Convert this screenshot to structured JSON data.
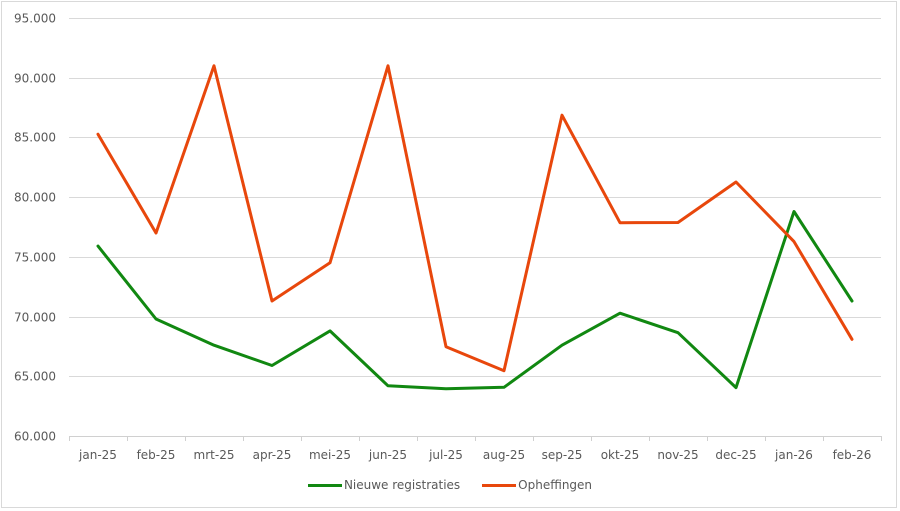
{
  "chart_data": {
    "type": "line",
    "title": "",
    "xlabel": "",
    "ylabel": "",
    "categories": [
      "jan-25",
      "feb-25",
      "mrt-25",
      "apr-25",
      "mei-25",
      "jun-25",
      "jul-25",
      "aug-25",
      "sep-25",
      "okt-25",
      "nov-25",
      "dec-25",
      "jan-26",
      "feb-26"
    ],
    "series": [
      {
        "name": "Nieuwe registraties",
        "color": "#118811",
        "values": [
          75900,
          69800,
          67600,
          65900,
          68800,
          64200,
          63950,
          64080,
          67600,
          70280,
          68650,
          64050,
          78800,
          71300
        ]
      },
      {
        "name": "Opheffingen",
        "color": "#E8470C",
        "values": [
          85270,
          77000,
          91000,
          71300,
          74500,
          91000,
          67480,
          65470,
          86860,
          77860,
          77880,
          81270,
          76280,
          68100
        ]
      }
    ],
    "ylim": [
      60000,
      95000
    ],
    "yticks": [
      60000,
      65000,
      70000,
      75000,
      80000,
      85000,
      90000,
      95000
    ],
    "ytick_labels": [
      "60.000",
      "65.000",
      "70.000",
      "75.000",
      "80.000",
      "85.000",
      "90.000",
      "95.000"
    ],
    "grid": true,
    "legend_position": "bottom"
  }
}
